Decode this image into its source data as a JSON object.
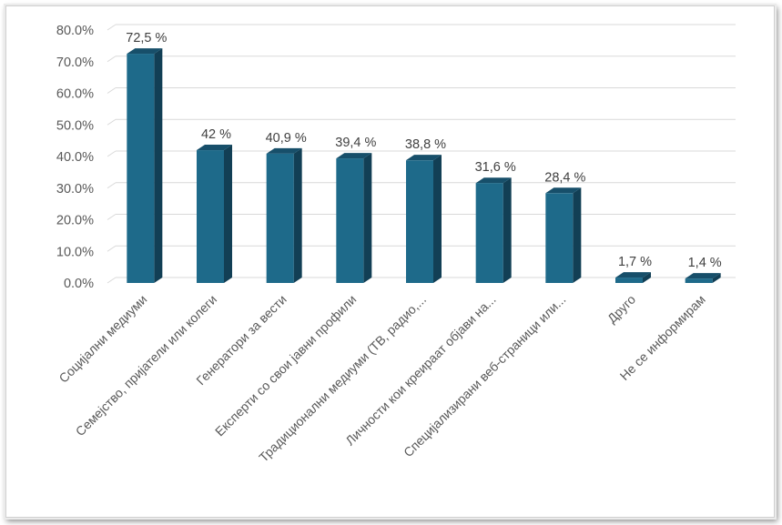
{
  "chart_data": {
    "type": "bar",
    "categories": [
      "Социјални медиуми",
      "Семејство, пријатели или колеги",
      "Генератори за вести",
      "Експерти со свои јавни профили",
      "Традиционални медиуми (ТВ, радио,...",
      "Личности кои креираат објави на...",
      "Специјализирани веб-страници или...",
      "Друго",
      "Не се информирам"
    ],
    "values": [
      72.5,
      42.0,
      40.9,
      39.4,
      38.8,
      31.6,
      28.4,
      1.7,
      1.4
    ],
    "data_labels": [
      "72,5 %",
      "42 %",
      "40,9 %",
      "39,4 %",
      "38,8 %",
      "31,6 %",
      "28,4 %",
      "1,7 %",
      "1,4 %"
    ],
    "yticks": [
      "0.0%",
      "10.0%",
      "20.0%",
      "30.0%",
      "40.0%",
      "50.0%",
      "60.0%",
      "70.0%",
      "80.0%"
    ],
    "ylim": [
      0,
      80
    ],
    "grid": true,
    "legend": "none",
    "bar_color": "#1e6a8a",
    "bar_side_color": "#123f55",
    "bar_top_color": "#174f6a"
  }
}
